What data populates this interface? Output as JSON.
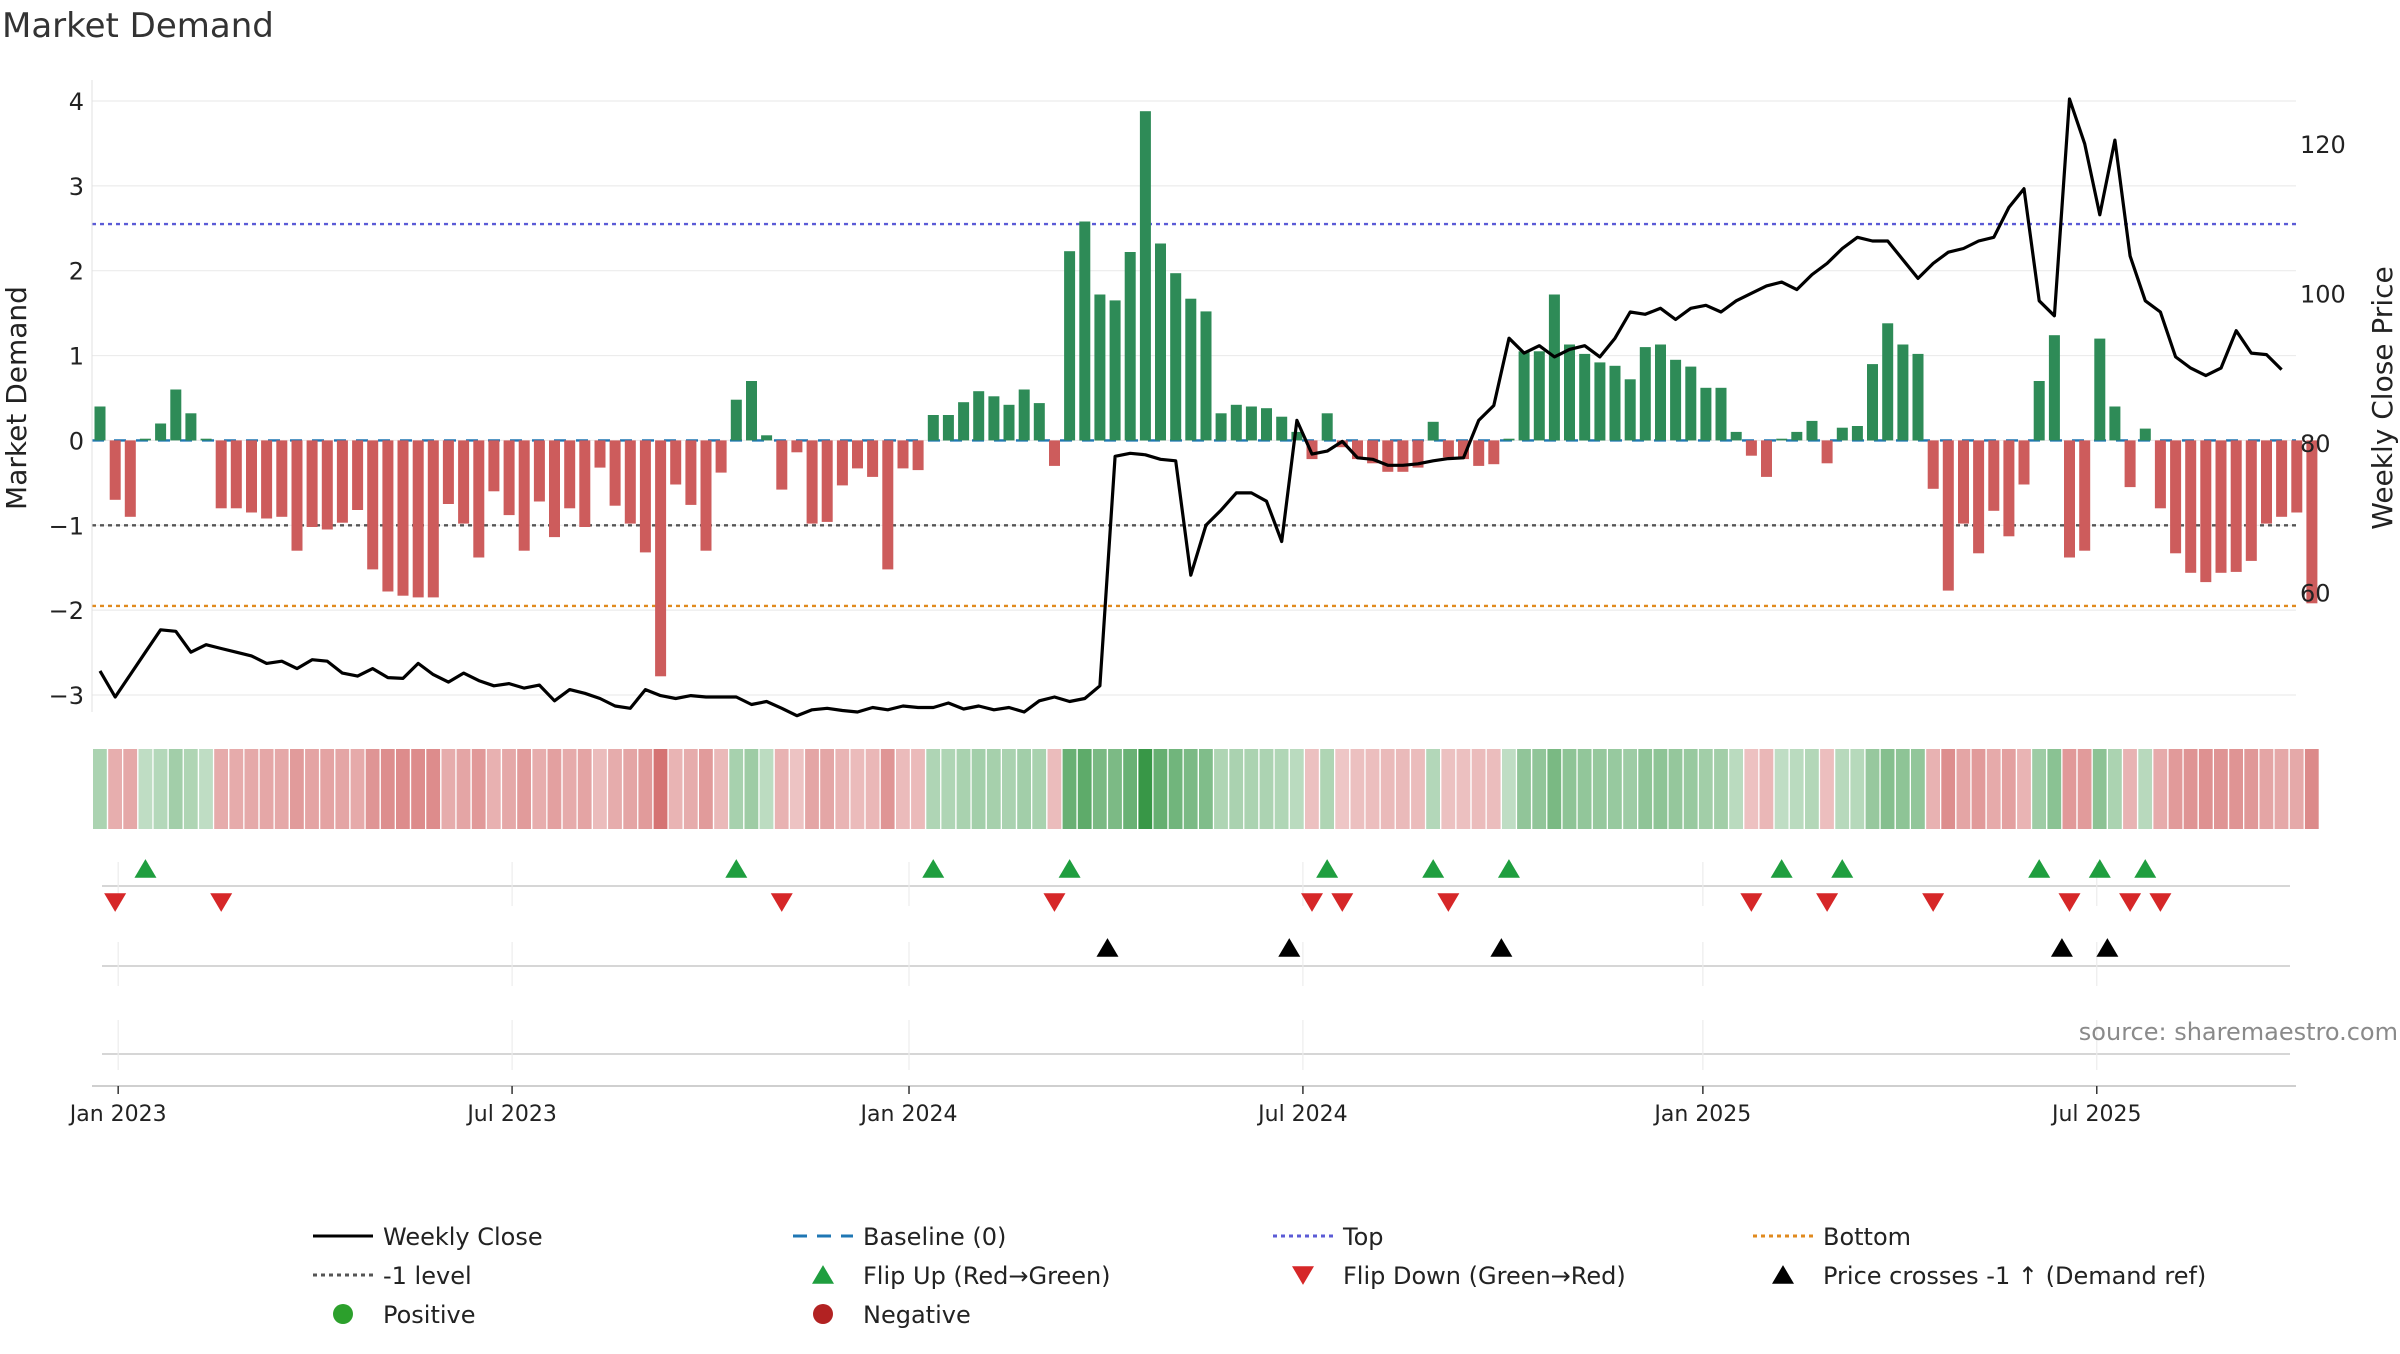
{
  "title": "Market Demand",
  "source": "source: sharemaestro.com",
  "colors": {
    "positive": "#2e8b57",
    "negative": "#cd5c5c",
    "price": "#000000",
    "baseline": "#1f77b4",
    "top": "#5b5bd6",
    "minus1": "#555555",
    "bottom": "#e08a1e",
    "flip_up": "#1f9e3f",
    "flip_down": "#d62728",
    "cross": "#000000"
  },
  "chart_data": {
    "type": "bar",
    "ylabel": "Market Demand",
    "y2label": "Weekly Close Price",
    "ylim": [
      -3.2,
      4.2
    ],
    "y2lim": [
      44,
      128
    ],
    "yticks": [
      "−3",
      "−2",
      "−1",
      "0",
      "1",
      "2",
      "3",
      "4"
    ],
    "y2ticks": [
      "60",
      "80",
      "100",
      "120"
    ],
    "xticks": [
      "Jan 2023",
      "Jul 2023",
      "Jan 2024",
      "Jul 2024",
      "Jan 2025",
      "Jul 2025"
    ],
    "xtick_index": [
      1.2,
      27.2,
      53.4,
      79.4,
      105.8,
      131.8
    ],
    "levels": {
      "top": 2.55,
      "minus1": -1.0,
      "bottom": -1.95
    },
    "demand": [
      0.4,
      -0.7,
      -0.9,
      0.02,
      0.2,
      0.6,
      0.32,
      0.02,
      -0.8,
      -0.8,
      -0.85,
      -0.92,
      -0.9,
      -1.3,
      -1.02,
      -1.05,
      -0.97,
      -0.82,
      -1.52,
      -1.78,
      -1.83,
      -1.85,
      -1.85,
      -0.75,
      -0.98,
      -1.38,
      -0.6,
      -0.88,
      -1.3,
      -0.72,
      -1.14,
      -0.8,
      -1.02,
      -0.32,
      -0.77,
      -0.98,
      -1.32,
      -2.78,
      -0.52,
      -0.76,
      -1.3,
      -0.38,
      0.48,
      0.7,
      0.06,
      -0.58,
      -0.14,
      -0.98,
      -0.96,
      -0.53,
      -0.33,
      -0.43,
      -1.52,
      -0.33,
      -0.35,
      0.3,
      0.3,
      0.45,
      0.58,
      0.52,
      0.42,
      0.6,
      0.44,
      -0.3,
      2.23,
      2.58,
      1.72,
      1.65,
      2.22,
      3.88,
      2.32,
      1.97,
      1.67,
      1.52,
      0.32,
      0.42,
      0.4,
      0.38,
      0.28,
      0.1,
      -0.22,
      0.32,
      -0.08,
      -0.22,
      -0.27,
      -0.37,
      -0.37,
      -0.32,
      0.22,
      -0.2,
      -0.22,
      -0.3,
      -0.28,
      0.02,
      1.05,
      1.05,
      1.72,
      1.13,
      1.02,
      0.92,
      0.88,
      0.72,
      1.1,
      1.13,
      0.95,
      0.87,
      0.62,
      0.62,
      0.1,
      -0.18,
      -0.43,
      0.02,
      0.1,
      0.23,
      -0.27,
      0.15,
      0.17,
      0.9,
      1.38,
      1.13,
      1.02,
      -0.57,
      -1.77,
      -0.98,
      -1.33,
      -0.83,
      -1.13,
      -0.52,
      0.7,
      1.24,
      -1.38,
      -1.3,
      1.2,
      0.4,
      -0.55,
      0.14,
      -0.8,
      -1.33,
      -1.56,
      -1.67,
      -1.56,
      -1.55,
      -1.42,
      -0.98,
      -0.9,
      -0.85,
      -1.92
    ],
    "price": [
      49.5,
      46,
      49,
      52,
      55,
      54.8,
      52,
      53,
      52.5,
      52,
      51.5,
      50.5,
      50.8,
      49.8,
      51,
      50.8,
      49.2,
      48.8,
      49.8,
      48.6,
      48.5,
      50.5,
      49,
      48,
      49.2,
      48.2,
      47.5,
      47.8,
      47.2,
      47.6,
      45.5,
      47,
      46.5,
      45.8,
      44.8,
      44.5,
      47,
      46.2,
      45.8,
      46.2,
      46,
      46,
      46,
      45,
      45.4,
      44.5,
      43.5,
      44.3,
      44.5,
      44.2,
      44,
      44.6,
      44.3,
      44.8,
      44.6,
      44.6,
      45.2,
      44.4,
      44.8,
      44.3,
      44.6,
      44,
      45.5,
      46,
      45.4,
      45.8,
      47.5,
      78.2,
      78.6,
      78.4,
      77.8,
      77.6,
      62.3,
      69,
      71,
      73.3,
      73.3,
      72.2,
      66.8,
      83,
      78.5,
      78.9,
      80.2,
      78,
      77.8,
      77,
      77,
      77.2,
      77.6,
      77.9,
      78,
      83,
      85,
      94,
      92,
      93,
      91.5,
      92.5,
      93,
      91.5,
      94,
      97.5,
      97.2,
      98,
      96.5,
      98,
      98.4,
      97.5,
      99,
      100,
      101,
      101.5,
      100.5,
      102.5,
      104,
      106,
      107.5,
      107,
      107,
      104.5,
      102,
      104,
      105.5,
      106,
      107,
      107.5,
      111.5,
      114,
      99,
      97,
      126,
      120,
      110.5,
      120.5,
      105,
      99,
      97.5,
      91.5,
      90,
      89,
      90,
      95,
      92,
      91.8,
      89.8
    ]
  },
  "legend": [
    {
      "label": "Weekly Close",
      "kind": "line"
    },
    {
      "label": "Baseline (0)",
      "kind": "dash"
    },
    {
      "label": "Top",
      "kind": "dot-top"
    },
    {
      "label": "Bottom",
      "kind": "dot-bottom"
    },
    {
      "label": "-1 level",
      "kind": "dot-minus1"
    },
    {
      "label": "Flip Up (Red→Green)",
      "kind": "tri-up"
    },
    {
      "label": "Flip Down (Green→Red)",
      "kind": "tri-down"
    },
    {
      "label": "Price crosses -1 ↑ (Demand ref)",
      "kind": "tri-cross"
    },
    {
      "label": "Positive",
      "kind": "dot-pos"
    },
    {
      "label": "Negative",
      "kind": "dot-neg"
    }
  ]
}
